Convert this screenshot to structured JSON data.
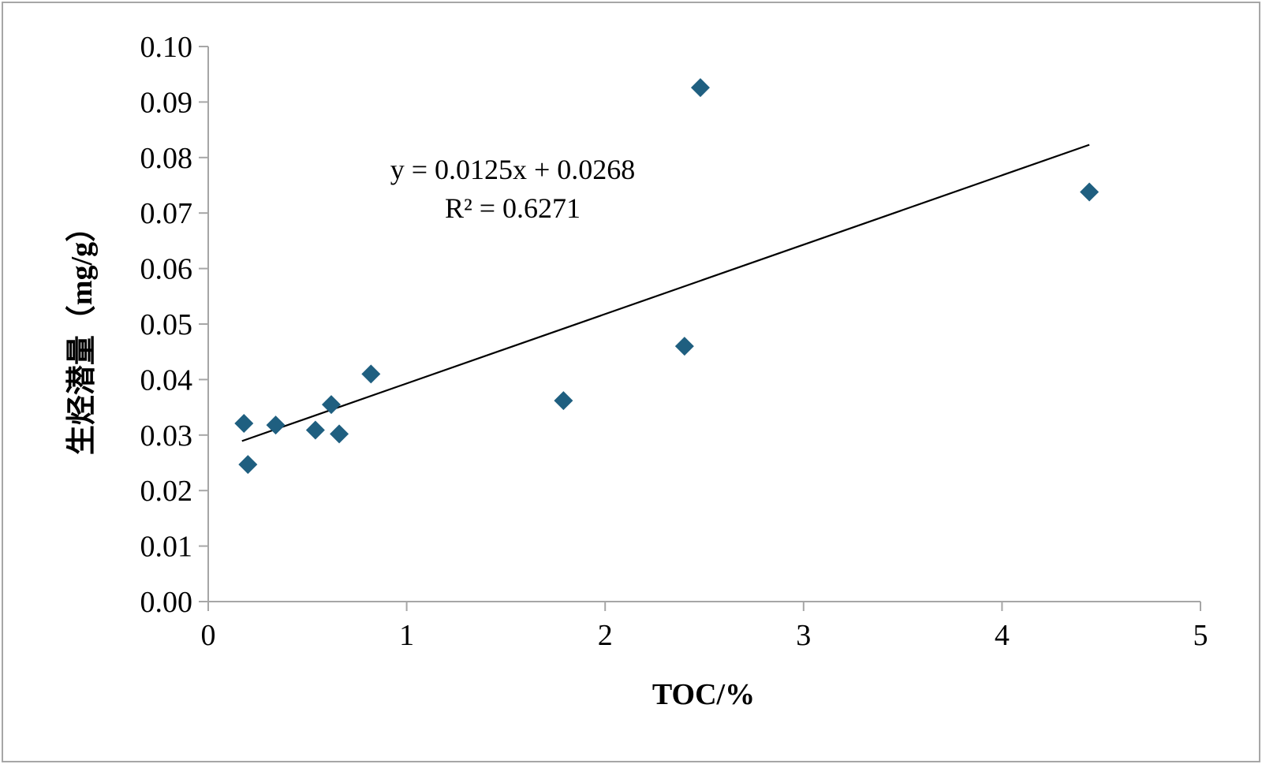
{
  "chart_data": {
    "type": "scatter",
    "xlabel": "TOC/%",
    "ylabel": "生烃潜量（mg/g）",
    "xlim": [
      0,
      5
    ],
    "ylim": [
      0,
      0.1
    ],
    "x_ticks": [
      "0",
      "1",
      "2",
      "3",
      "4",
      "5"
    ],
    "y_ticks": [
      "0.00",
      "0.01",
      "0.02",
      "0.03",
      "0.04",
      "0.05",
      "0.06",
      "0.07",
      "0.08",
      "0.09",
      "0.10"
    ],
    "grid": false,
    "marker_color": "#1f5f80",
    "trendline_color": "#000000",
    "series": [
      {
        "x": [
          0.18,
          0.2,
          0.34,
          0.54,
          0.62,
          0.66,
          0.82,
          1.79,
          2.4,
          2.48,
          4.44
        ],
        "y": [
          0.0321,
          0.0247,
          0.0318,
          0.0309,
          0.0355,
          0.0302,
          0.041,
          0.0362,
          0.046,
          0.0926,
          0.0738
        ]
      }
    ],
    "trendline": {
      "slope": 0.0125,
      "intercept": 0.0268,
      "x_range": [
        0.17,
        4.44
      ]
    },
    "annotations": {
      "equation": "y = 0.0125x + 0.0268",
      "r_squared": "R² = 0.6271"
    }
  }
}
